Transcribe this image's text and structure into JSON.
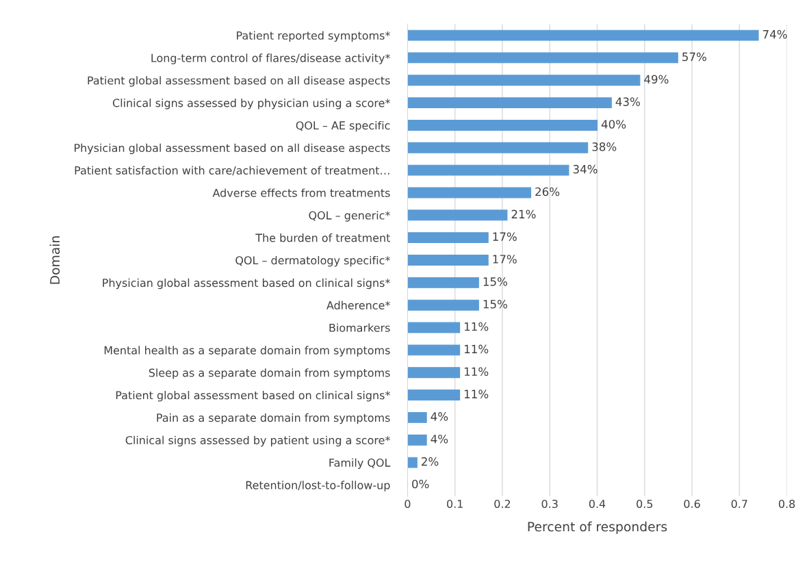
{
  "chart_data": {
    "type": "bar",
    "orientation": "horizontal",
    "xlabel": "Percent of responders",
    "ylabel": "Domain",
    "categories": [
      "Patient reported symptoms*",
      "Long-term control of flares/disease activity*",
      "Patient global assessment based on all disease aspects",
      "Clinical signs assessed by physician using a score*",
      "QOL – AE specific",
      "Physician global assessment based on all disease aspects",
      "Patient satisfaction with care/achievement of treatment…",
      "Adverse effects from treatments",
      "QOL – generic*",
      "The burden of treatment",
      "QOL – dermatology specific*",
      "Physician global assessment based on clinical signs*",
      "Adherence*",
      "Biomarkers",
      "Mental health as a separate domain from symptoms",
      "Sleep as a separate domain from symptoms",
      "Patient global assessment based on clinical signs*",
      "Pain as a separate domain from symptoms",
      "Clinical signs assessed by patient using a score*",
      "Family QOL",
      "Retention/lost-to-follow-up"
    ],
    "values": [
      0.74,
      0.57,
      0.49,
      0.43,
      0.4,
      0.38,
      0.34,
      0.26,
      0.21,
      0.17,
      0.17,
      0.15,
      0.15,
      0.11,
      0.11,
      0.11,
      0.11,
      0.04,
      0.04,
      0.02,
      0.0
    ],
    "value_labels": [
      "74%",
      "57%",
      "49%",
      "43%",
      "40%",
      "38%",
      "34%",
      "26%",
      "21%",
      "17%",
      "17%",
      "15%",
      "15%",
      "11%",
      "11%",
      "11%",
      "11%",
      "4%",
      "4%",
      "2%",
      "0%"
    ],
    "color": "#5b9bd5",
    "xlim": [
      0,
      0.8
    ],
    "xticks": [
      0,
      0.1,
      0.2,
      0.3,
      0.4,
      0.5,
      0.6,
      0.7,
      0.8
    ],
    "grid": "x"
  }
}
